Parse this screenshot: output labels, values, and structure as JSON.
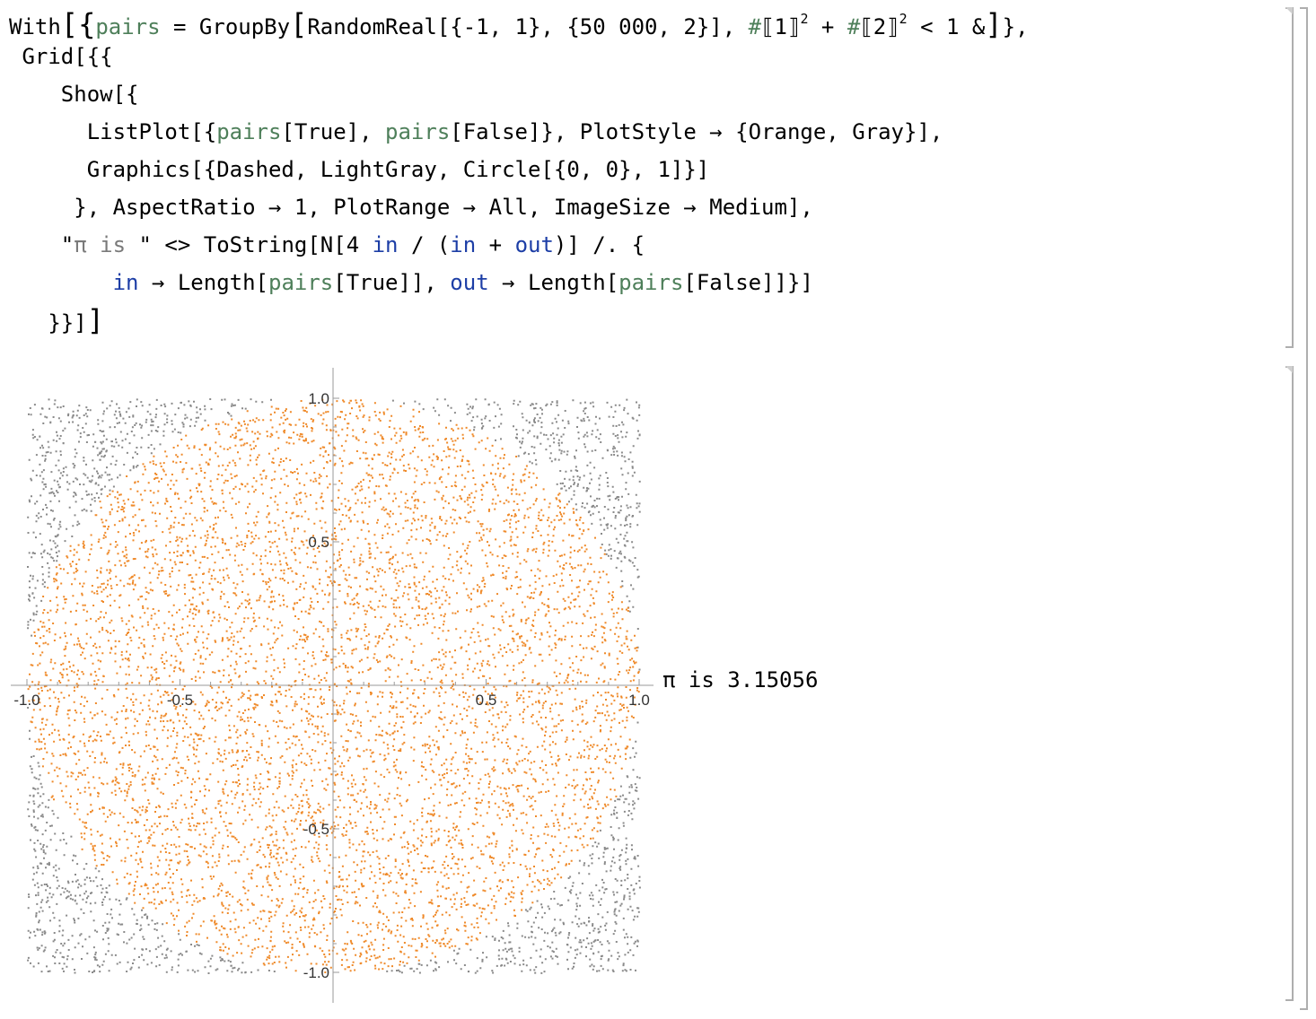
{
  "input_cell": {
    "lines": [
      [
        {
          "t": "With",
          "c": "fn"
        },
        {
          "t": "[{",
          "c": "big"
        },
        {
          "t": "pairs",
          "c": "var"
        },
        {
          "t": " = GroupBy",
          "c": "fn"
        },
        {
          "t": "[",
          "c": "big"
        },
        {
          "t": "RandomReal[{-1, 1}, {50 000, 2}], ",
          "c": "fn"
        },
        {
          "t": "#",
          "c": "var"
        },
        {
          "t": "⟦1⟧",
          "c": "fn"
        },
        {
          "t": "2",
          "c": "sup"
        },
        {
          "t": " + ",
          "c": "fn"
        },
        {
          "t": "#",
          "c": "var"
        },
        {
          "t": "⟦2⟧",
          "c": "fn"
        },
        {
          "t": "2",
          "c": "sup"
        },
        {
          "t": " < 1 &",
          "c": "fn"
        },
        {
          "t": "]",
          "c": "big"
        },
        {
          "t": "},",
          "c": "fn"
        }
      ],
      [
        {
          "t": " Grid[{{",
          "c": "fn"
        }
      ],
      [
        {
          "t": "    Show[{",
          "c": "fn"
        }
      ],
      [
        {
          "t": "      ListPlot[{",
          "c": "fn"
        },
        {
          "t": "pairs",
          "c": "var"
        },
        {
          "t": "[True], ",
          "c": "fn"
        },
        {
          "t": "pairs",
          "c": "var"
        },
        {
          "t": "[False]}, PlotStyle → {Orange, Gray}],",
          "c": "fn"
        }
      ],
      [
        {
          "t": "      Graphics[{Dashed, LightGray, Circle[{0, 0}, 1]}]",
          "c": "fn"
        }
      ],
      [
        {
          "t": "     }, AspectRatio → 1, PlotRange → All, ImageSize → Medium],",
          "c": "fn"
        }
      ],
      [
        {
          "t": "    \"",
          "c": "fn"
        },
        {
          "t": "π is ",
          "c": "str"
        },
        {
          "t": "\" <> ToString[N[4 ",
          "c": "fn"
        },
        {
          "t": "in",
          "c": "sym"
        },
        {
          "t": " / (",
          "c": "fn"
        },
        {
          "t": "in",
          "c": "sym"
        },
        {
          "t": " + ",
          "c": "fn"
        },
        {
          "t": "out",
          "c": "sym"
        },
        {
          "t": ")] /. {",
          "c": "fn"
        }
      ],
      [
        {
          "t": "        ",
          "c": "fn"
        },
        {
          "t": "in",
          "c": "sym"
        },
        {
          "t": " → Length[",
          "c": "fn"
        },
        {
          "t": "pairs",
          "c": "var"
        },
        {
          "t": "[True]], ",
          "c": "fn"
        },
        {
          "t": "out",
          "c": "sym"
        },
        {
          "t": " → Length[",
          "c": "fn"
        },
        {
          "t": "pairs",
          "c": "var"
        },
        {
          "t": "[False]]}]",
          "c": "fn"
        }
      ],
      [
        {
          "t": "   }}]",
          "c": "fn"
        },
        {
          "t": "]",
          "c": "big"
        }
      ]
    ]
  },
  "output_cell": {
    "result_text": "π is 3.15056"
  },
  "colors": {
    "inside_points": "#ef8a2a",
    "outside_points": "#8a8a8a",
    "axis": "#9a9a9a",
    "bracket": "#aeaeae"
  },
  "chart_data": {
    "type": "scatter",
    "title": "",
    "xlabel": "",
    "ylabel": "",
    "xlim": [
      -1.0,
      1.0
    ],
    "ylim": [
      -1.0,
      1.0
    ],
    "x_ticks": [
      "-1.0",
      "-0.5",
      "0.5",
      "1.0"
    ],
    "y_ticks": [
      "1.0",
      "0.5",
      "-0.5",
      "-1.0"
    ],
    "x_tick_values": [
      -1.0,
      -0.5,
      0.5,
      1.0
    ],
    "y_tick_values": [
      1.0,
      0.5,
      -0.5,
      -1.0
    ],
    "point_count": 50000,
    "series": [
      {
        "name": "",
        "color": "#ef8a2a",
        "region": "x^2 + y^2 < 1"
      },
      {
        "name": "",
        "color": "#8a8a8a",
        "region": "x^2 + y^2 >= 1"
      }
    ],
    "grid": false,
    "legend": "none"
  }
}
